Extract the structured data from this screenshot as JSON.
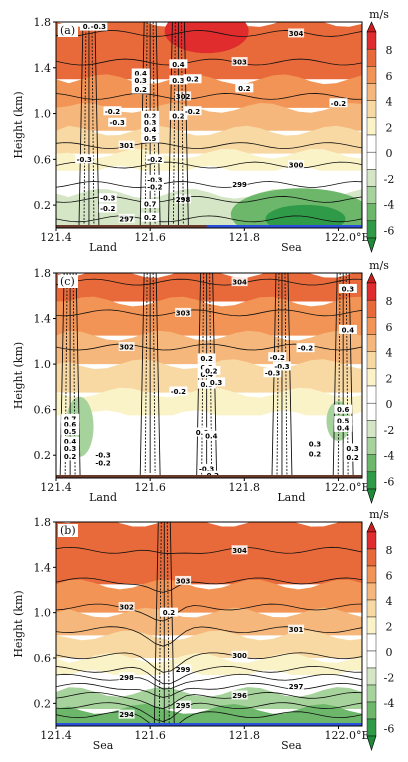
{
  "chart_data": [
    {
      "type": "heatmap",
      "panel_label": "(a)",
      "ylabel": "Height (km)",
      "yticks": [
        "0.2",
        "0.6",
        "1.0",
        "1.4",
        "1.8"
      ],
      "xticks": [
        "121.4",
        "121.6",
        "121.8",
        "122.0°E"
      ],
      "surface_labels": [
        {
          "text": "Land",
          "x": 121.5
        },
        {
          "text": "Sea",
          "x": 121.9
        }
      ],
      "surface_colors": [
        "#6b3a2a",
        "#2a4fd8"
      ],
      "sea_from": 121.72,
      "xlim": [
        121.4,
        122.05
      ],
      "ylim": [
        0.0,
        1.8
      ],
      "shading": "vertical velocity (m/s)",
      "temperature_contours": [
        {
          "level": "297",
          "y": 0.08
        },
        {
          "level": "298",
          "y": 0.25
        },
        {
          "level": "299",
          "y": 0.38
        },
        {
          "level": "300",
          "y": 0.55
        },
        {
          "level": "301",
          "y": 0.72
        },
        {
          "level": "302",
          "y": 1.15
        },
        {
          "level": "303",
          "y": 1.45
        },
        {
          "level": "304",
          "y": 1.7
        }
      ],
      "w_labels": [
        {
          "text": "0.3",
          "x": 121.47,
          "y": 1.76
        },
        {
          "text": "-0.3",
          "x": 121.49,
          "y": 1.76
        },
        {
          "text": "0.4",
          "x": 121.58,
          "y": 1.35
        },
        {
          "text": "0.3",
          "x": 121.58,
          "y": 1.29
        },
        {
          "text": "0.2",
          "x": 121.58,
          "y": 1.21
        },
        {
          "text": "-0.2",
          "x": 121.52,
          "y": 1.02
        },
        {
          "text": "-0.3",
          "x": 121.53,
          "y": 0.92
        },
        {
          "text": "0.2",
          "x": 121.6,
          "y": 0.98
        },
        {
          "text": "0.3",
          "x": 121.6,
          "y": 0.92
        },
        {
          "text": "0.4",
          "x": 121.6,
          "y": 0.86
        },
        {
          "text": "0.5",
          "x": 121.6,
          "y": 0.78
        },
        {
          "text": "-0.3",
          "x": 121.46,
          "y": 0.6
        },
        {
          "text": "-0.2",
          "x": 121.61,
          "y": 0.6
        },
        {
          "text": "-0.3",
          "x": 121.61,
          "y": 0.42
        },
        {
          "text": "-0.2",
          "x": 121.61,
          "y": 0.36
        },
        {
          "text": "-0.3",
          "x": 121.51,
          "y": 0.26
        },
        {
          "text": "-0.2",
          "x": 121.51,
          "y": 0.17
        },
        {
          "text": "0.7",
          "x": 121.6,
          "y": 0.21
        },
        {
          "text": "0.2",
          "x": 121.6,
          "y": 0.09
        },
        {
          "text": "0.4",
          "x": 121.66,
          "y": 1.43
        },
        {
          "text": "0.3",
          "x": 121.66,
          "y": 1.29
        },
        {
          "text": "0.2",
          "x": 121.66,
          "y": 0.98
        },
        {
          "text": "-0.2",
          "x": 121.69,
          "y": 1.02
        },
        {
          "text": "0.2",
          "x": 121.8,
          "y": 1.22
        },
        {
          "text": "-0.2",
          "x": 122.0,
          "y": 1.09
        },
        {
          "text": "0.2",
          "x": 121.69,
          "y": 1.3
        }
      ]
    },
    {
      "type": "heatmap",
      "panel_label": "(c)",
      "ylabel": "Height (km)",
      "yticks": [
        "0.2",
        "0.6",
        "1.0",
        "1.4",
        "1.8"
      ],
      "xticks": [
        "121.4",
        "121.6",
        "121.8",
        "122.0°E"
      ],
      "surface_labels": [
        {
          "text": "Land",
          "x": 121.5
        },
        {
          "text": "Land",
          "x": 121.9
        }
      ],
      "surface_colors": [
        "#6b3a2a",
        "#6b3a2a"
      ],
      "sea_from": null,
      "xlim": [
        121.4,
        122.05
      ],
      "ylim": [
        0.0,
        1.8
      ],
      "shading": "vertical velocity (m/s)",
      "temperature_contours": [
        {
          "level": "302",
          "y": 1.15
        },
        {
          "level": "303",
          "y": 1.45
        },
        {
          "level": "304",
          "y": 1.72
        }
      ],
      "w_labels": [
        {
          "text": "0.7",
          "x": 121.43,
          "y": 0.52
        },
        {
          "text": "0.6",
          "x": 121.43,
          "y": 0.47
        },
        {
          "text": "0.5",
          "x": 121.43,
          "y": 0.41
        },
        {
          "text": "0.4",
          "x": 121.43,
          "y": 0.32
        },
        {
          "text": "0.3",
          "x": 121.43,
          "y": 0.26
        },
        {
          "text": "0.2",
          "x": 121.43,
          "y": 0.19
        },
        {
          "text": "-0.3",
          "x": 121.5,
          "y": 0.2
        },
        {
          "text": "-0.2",
          "x": 121.5,
          "y": 0.13
        },
        {
          "text": "-0.2",
          "x": 121.6,
          "y": 0.0
        },
        {
          "text": "0.2",
          "x": 121.72,
          "y": 1.05
        },
        {
          "text": "0.3",
          "x": 121.72,
          "y": 0.97
        },
        {
          "text": "0.4",
          "x": 121.72,
          "y": 0.91
        },
        {
          "text": "0.5",
          "x": 121.72,
          "y": 0.82
        },
        {
          "text": "-0.2",
          "x": 121.66,
          "y": 0.76
        },
        {
          "text": "0.2",
          "x": 121.73,
          "y": 0.94
        },
        {
          "text": "0.3",
          "x": 121.74,
          "y": 0.84
        },
        {
          "text": "0.6",
          "x": 121.71,
          "y": 0.4
        },
        {
          "text": "0.4",
          "x": 121.73,
          "y": 0.37
        },
        {
          "text": "-0.3",
          "x": 121.72,
          "y": 0.08
        },
        {
          "text": "-0.2",
          "x": 121.73,
          "y": 0.02
        },
        {
          "text": "-0.2",
          "x": 121.87,
          "y": 1.06
        },
        {
          "text": "-0.3",
          "x": 121.88,
          "y": 0.98
        },
        {
          "text": "-0.3",
          "x": 121.86,
          "y": 0.92
        },
        {
          "text": "-0.2",
          "x": 121.93,
          "y": 1.14
        },
        {
          "text": "0.3",
          "x": 122.02,
          "y": 1.66
        },
        {
          "text": "0.4",
          "x": 122.02,
          "y": 1.3
        },
        {
          "text": "0.6",
          "x": 122.01,
          "y": 0.6
        },
        {
          "text": "0.5",
          "x": 122.01,
          "y": 0.5
        },
        {
          "text": "0.4",
          "x": 122.01,
          "y": 0.44
        },
        {
          "text": "0.3",
          "x": 122.03,
          "y": 0.26
        },
        {
          "text": "0.2",
          "x": 122.03,
          "y": 0.18
        },
        {
          "text": "0.3",
          "x": 121.95,
          "y": 0.3
        },
        {
          "text": "0.2",
          "x": 121.95,
          "y": 0.21
        }
      ]
    },
    {
      "type": "heatmap",
      "panel_label": "(b)",
      "ylabel": "Height (km)",
      "yticks": [
        "0.2",
        "0.6",
        "1.0",
        "1.4",
        "1.8"
      ],
      "xticks": [
        "121.4",
        "121.6",
        "121.8",
        "122.0°E"
      ],
      "surface_labels": [
        {
          "text": "Sea",
          "x": 121.5
        },
        {
          "text": "Sea",
          "x": 121.9
        }
      ],
      "surface_colors": [
        "#2a4fd8",
        "#2a4fd8"
      ],
      "sea_from": 121.4,
      "xlim": [
        121.4,
        122.05
      ],
      "ylim": [
        0.0,
        1.8
      ],
      "shading": "vertical velocity (m/s)",
      "temperature_contours": [
        {
          "level": "294",
          "y": 0.1
        },
        {
          "level": "295",
          "y": 0.18
        },
        {
          "level": "296",
          "y": 0.27
        },
        {
          "level": "297",
          "y": 0.35
        },
        {
          "level": "298",
          "y": 0.43
        },
        {
          "level": "299",
          "y": 0.5
        },
        {
          "level": "300",
          "y": 0.62
        },
        {
          "level": "301",
          "y": 0.85
        },
        {
          "level": "302",
          "y": 1.05
        },
        {
          "level": "303",
          "y": 1.28
        },
        {
          "level": "304",
          "y": 1.55
        }
      ],
      "w_labels": [
        {
          "text": "0.2",
          "x": 121.64,
          "y": 1.0
        }
      ]
    }
  ],
  "colorbar": {
    "unit": "m/s",
    "ticks": [
      "8",
      "6",
      "4",
      "2",
      "0",
      "-2",
      "-4",
      "-6"
    ],
    "colors": [
      "#e02c2c",
      "#e86a3a",
      "#f29455",
      "#f5b77b",
      "#f8d9a3",
      "#fbf3c8",
      "#ffffff",
      "#ffffff",
      "#d4e6c5",
      "#a6d29b",
      "#6cb76a",
      "#2f9a48"
    ]
  }
}
